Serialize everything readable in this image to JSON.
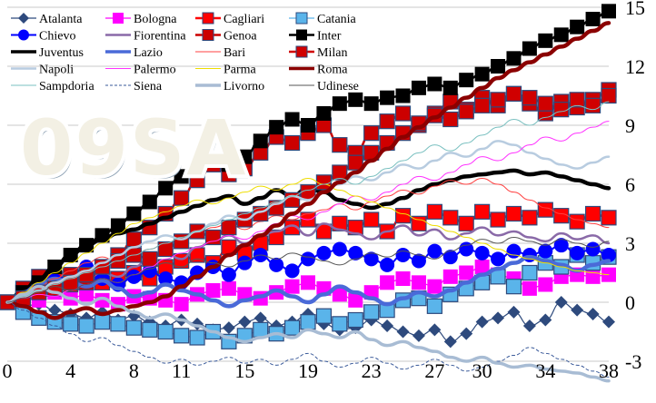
{
  "watermark": "09SA",
  "chart_data": {
    "type": "line",
    "title": "",
    "xlabel": "",
    "ylabel": "",
    "xlim": [
      0,
      38
    ],
    "ylim": [
      -3,
      15
    ],
    "x_ticks": [
      0,
      4,
      8,
      11,
      15,
      19,
      23,
      27,
      30,
      34,
      38
    ],
    "y_ticks": [
      -3,
      0,
      3,
      6,
      9,
      12,
      15
    ],
    "grid": "horizontal",
    "legend_position": "top-left",
    "series": [
      {
        "name": "Atalanta",
        "color": "#2e4a7d",
        "style": "line-diamond",
        "width": 1.2,
        "values": [
          0,
          -0.2,
          -0.1,
          -0.4,
          -0.6,
          -0.8,
          -0.5,
          -0.9,
          -0.7,
          -1.0,
          -1.2,
          -0.9,
          -1.1,
          -1.4,
          -1.3,
          -1.0,
          -0.8,
          -1.2,
          -1.0,
          -0.6,
          -1.1,
          -1.4,
          -1.3,
          -0.9,
          -1.2,
          -1.5,
          -1.7,
          -1.4,
          -2.0,
          -1.6,
          -1.0,
          -0.8,
          -0.5,
          -1.2,
          -0.9,
          0,
          -0.4,
          -0.6,
          -1.0
        ]
      },
      {
        "name": "Bologna",
        "color": "#ff00ff",
        "style": "line-square",
        "width": 1.2,
        "values": [
          0,
          0.3,
          0.1,
          0.5,
          0.2,
          0.4,
          0.1,
          -0.1,
          0.3,
          0.2,
          0.1,
          -0.1,
          0.4,
          0.6,
          0.7,
          0.4,
          0.2,
          0.5,
          0.8,
          1.0,
          0.7,
          0.4,
          0.1,
          0.5,
          1.0,
          1.2,
          1.0,
          0.8,
          1.3,
          1.5,
          1.8,
          1.4,
          1.2,
          0.7,
          0.9,
          1.3,
          1.4,
          1.3,
          1.4
        ]
      },
      {
        "name": "Cagliari",
        "color": "#ff0000",
        "style": "line-square-bordered",
        "width": 2.5,
        "values": [
          0,
          0.5,
          0.8,
          1.2,
          0.9,
          1.3,
          1.0,
          1.2,
          1.5,
          1.2,
          1.8,
          2.1,
          2.4,
          2.0,
          2.8,
          2.5,
          3.0,
          3.3,
          3.8,
          4.2,
          3.6,
          4.0,
          3.8,
          4.2,
          3.6,
          4.4,
          4.0,
          4.6,
          4.3,
          4.0,
          4.6,
          4.2,
          4.5,
          4.3,
          4.7,
          4.4,
          4.1,
          4.5,
          4.3
        ]
      },
      {
        "name": "Catania",
        "color": "#5ab4ea",
        "style": "line-square-bordered",
        "width": 1.2,
        "values": [
          0,
          -0.5,
          -0.8,
          -1.0,
          -1.1,
          -1.2,
          -1.0,
          -1.1,
          -1.3,
          -1.4,
          -1.5,
          -1.7,
          -1.8,
          -1.5,
          -2.0,
          -1.7,
          -1.4,
          -1.6,
          -1.3,
          -1.0,
          -0.7,
          -1.1,
          -0.9,
          -0.5,
          -0.4,
          0.1,
          0.2,
          -0.2,
          0.4,
          0.7,
          1.0,
          1.3,
          0.8,
          1.5,
          2.0,
          1.8,
          2.4,
          2.0,
          2.3
        ]
      },
      {
        "name": "Chievo",
        "color": "#0000ff",
        "style": "line-circle",
        "width": 2.0,
        "values": [
          0,
          0.3,
          0.7,
          1.1,
          1.4,
          1.8,
          1.2,
          0.9,
          1.3,
          1.6,
          1.2,
          1.0,
          1.5,
          1.8,
          1.4,
          2.0,
          2.4,
          1.9,
          1.6,
          2.2,
          2.5,
          2.7,
          2.5,
          2.2,
          1.9,
          2.4,
          2.1,
          2.6,
          2.3,
          2.7,
          2.5,
          2.2,
          2.6,
          2.4,
          2.6,
          2.9,
          2.5,
          2.7,
          2.4
        ]
      },
      {
        "name": "Fiorentina",
        "color": "#8a6aa8",
        "style": "line",
        "width": 2.5,
        "values": [
          0,
          0.3,
          0.6,
          0.4,
          0.8,
          1.2,
          1.5,
          1.3,
          1.8,
          2.2,
          2.5,
          2.2,
          2.8,
          3.1,
          3.4,
          3.0,
          3.4,
          3.6,
          3.9,
          3.4,
          4.0,
          3.7,
          3.5,
          3.2,
          3.6,
          3.9,
          3.4,
          3.7,
          3.2,
          3.5,
          3.8,
          3.4,
          3.6,
          3.3,
          3.1,
          3.5,
          3.2,
          3.4,
          3.0
        ]
      },
      {
        "name": "Genoa",
        "color": "#cc0000",
        "style": "line-square-bordered",
        "width": 2.5,
        "values": [
          0,
          0.7,
          1.3,
          0.8,
          1.4,
          1.0,
          1.8,
          2.4,
          3.2,
          3.8,
          4.5,
          5.3,
          6.2,
          7.0,
          6.5,
          6.8,
          7.6,
          8.4,
          8.1,
          8.6,
          9.0,
          8.0,
          7.6,
          8.6,
          9.2,
          9.6,
          9.0,
          9.6,
          10.2,
          9.8,
          10.4,
          10.0,
          10.6,
          10.1,
          9.6,
          10.2,
          9.9,
          10.3,
          10.8
        ]
      },
      {
        "name": "Inter",
        "color": "#000000",
        "style": "line-square",
        "width": 2.5,
        "values": [
          0,
          0.5,
          1.0,
          1.8,
          2.4,
          2.9,
          3.4,
          3.9,
          4.5,
          5.1,
          5.8,
          6.4,
          7.0,
          7.2,
          7.0,
          7.4,
          8.2,
          8.9,
          9.3,
          9.0,
          9.6,
          10.1,
          10.3,
          10.1,
          10.4,
          10.5,
          10.9,
          11.1,
          10.9,
          11.3,
          11.6,
          12.0,
          12.4,
          12.9,
          13.3,
          13.6,
          14.0,
          14.4,
          14.8
        ]
      },
      {
        "name": "Juventus",
        "color": "#000000",
        "style": "line",
        "width": 4.5,
        "values": [
          0,
          0.6,
          1.2,
          1.8,
          2.4,
          2.9,
          3.2,
          3.5,
          3.7,
          4.0,
          4.3,
          4.6,
          4.9,
          5.2,
          5.4,
          5.0,
          5.3,
          5.7,
          5.4,
          5.8,
          5.6,
          5.2,
          5.0,
          4.8,
          5.0,
          5.3,
          5.7,
          6.0,
          6.2,
          6.4,
          6.5,
          6.6,
          6.7,
          6.5,
          6.6,
          6.4,
          6.2,
          6.0,
          5.8
        ]
      },
      {
        "name": "Lazio",
        "color": "#4a6ad8",
        "style": "line",
        "width": 4.5,
        "values": [
          0,
          0.5,
          0.9,
          1.2,
          1.0,
          0.8,
          1.1,
          0.7,
          0.3,
          0.5,
          0.9,
          0.6,
          0.4,
          0.1,
          -0.2,
          0.1,
          0.3,
          0.6,
          0.3,
          0.0,
          0.4,
          0.8,
          0.5,
          0.2,
          -0.1,
          0.2,
          0.5,
          0.3,
          0.6,
          1.0,
          1.4,
          1.7,
          2.0,
          2.3,
          2.1,
          1.9,
          1.6,
          1.9,
          2.1
        ]
      },
      {
        "name": "Bari",
        "color": "#ff4040",
        "style": "line",
        "width": 1.0,
        "values": [
          0,
          0.4,
          0.8,
          1.2,
          1.6,
          2.0,
          2.3,
          2.0,
          2.4,
          2.7,
          3.0,
          3.2,
          3.5,
          3.8,
          4.0,
          3.7,
          4.1,
          4.4,
          4.2,
          4.5,
          4.7,
          5.0,
          4.7,
          5.1,
          5.4,
          5.7,
          5.5,
          5.9,
          6.2,
          6.0,
          6.3,
          6.0,
          5.6,
          5.2,
          4.8,
          4.5,
          4.2,
          4.0,
          3.8
        ]
      },
      {
        "name": "Milan",
        "color": "#d00000",
        "style": "line-square-bordered",
        "width": 2.5,
        "values": [
          0,
          0.2,
          0.5,
          0.7,
          1.0,
          1.4,
          1.8,
          2.1,
          2.4,
          2.2,
          2.7,
          3.1,
          3.6,
          3.3,
          3.8,
          4.2,
          4.5,
          4.8,
          5.2,
          5.6,
          6.1,
          6.6,
          7.1,
          7.6,
          8.1,
          8.6,
          9.1,
          9.5,
          9.3,
          9.7,
          10.0,
          10.3,
          10.6,
          10.4,
          10.1,
          9.8,
          10.3,
          10.0,
          10.5
        ]
      },
      {
        "name": "Napoli",
        "color": "#b8cce0",
        "style": "line",
        "width": 2.5,
        "values": [
          0,
          0.3,
          0.6,
          1.0,
          1.3,
          1.6,
          2.0,
          2.4,
          2.8,
          3.1,
          3.4,
          3.2,
          3.6,
          4.0,
          4.4,
          4.2,
          4.6,
          5.0,
          5.4,
          5.2,
          5.6,
          6.0,
          6.4,
          6.2,
          6.6,
          7.0,
          6.8,
          7.2,
          7.6,
          7.4,
          7.8,
          8.2,
          8.0,
          7.6,
          7.3,
          7.0,
          6.8,
          7.1,
          7.4
        ]
      },
      {
        "name": "Palermo",
        "color": "#ff33ff",
        "style": "line",
        "width": 1.0,
        "values": [
          0,
          0.2,
          0.4,
          0.3,
          0.6,
          0.9,
          1.2,
          1.0,
          1.4,
          1.8,
          2.2,
          2.5,
          2.8,
          3.1,
          3.4,
          3.2,
          3.6,
          4.0,
          4.4,
          4.2,
          4.6,
          5.0,
          5.4,
          5.2,
          5.6,
          6.0,
          6.4,
          6.2,
          6.6,
          7.0,
          7.4,
          7.2,
          7.6,
          8.0,
          8.4,
          8.2,
          8.6,
          8.9,
          9.2
        ]
      },
      {
        "name": "Parma",
        "color": "#eedd00",
        "style": "line",
        "width": 1.0,
        "values": [
          0,
          0.5,
          1.0,
          1.5,
          2.0,
          2.5,
          3.0,
          3.5,
          4.0,
          4.3,
          4.6,
          4.9,
          5.2,
          5.0,
          5.3,
          5.6,
          5.9,
          5.7,
          6.0,
          6.3,
          6.0,
          5.7,
          5.4,
          5.1,
          4.8,
          4.5,
          4.2,
          3.9,
          3.6,
          3.3,
          3.0,
          2.7,
          2.4,
          2.2,
          2.0,
          1.8,
          1.6,
          1.5,
          1.4
        ]
      },
      {
        "name": "Roma",
        "color": "#8b0000",
        "style": "line",
        "width": 4.5,
        "values": [
          0,
          -0.2,
          -0.5,
          -0.8,
          -0.5,
          -0.3,
          -0.6,
          -0.4,
          -0.2,
          0.0,
          0.3,
          0.8,
          1.3,
          1.8,
          2.4,
          2.9,
          3.4,
          3.9,
          4.5,
          5.0,
          5.6,
          6.1,
          6.6,
          7.2,
          7.8,
          8.4,
          8.9,
          9.4,
          9.9,
          10.4,
          10.9,
          11.4,
          11.8,
          12.2,
          12.6,
          13.0,
          13.4,
          13.8,
          14.2
        ]
      },
      {
        "name": "Sampdoria",
        "color": "#7ac0c0",
        "style": "line",
        "width": 1.0,
        "values": [
          0,
          0.3,
          0.6,
          0.9,
          1.2,
          1.5,
          1.8,
          2.1,
          2.4,
          2.7,
          3.0,
          3.3,
          3.6,
          3.9,
          4.2,
          4.5,
          4.8,
          5.1,
          5.4,
          5.7,
          6.0,
          6.3,
          6.0,
          6.4,
          6.8,
          7.2,
          7.6,
          8.0,
          7.7,
          8.1,
          8.5,
          8.9,
          9.3,
          9.0,
          9.4,
          9.7,
          10.0,
          9.8,
          10.2
        ]
      },
      {
        "name": "Siena",
        "color": "#3a5a9a",
        "style": "dashed",
        "width": 1.0,
        "values": [
          0,
          -0.4,
          -0.8,
          -1.2,
          -1.6,
          -2.0,
          -1.8,
          -2.2,
          -2.5,
          -2.8,
          -3.1,
          -2.9,
          -3.2,
          -3.0,
          -2.8,
          -3.1,
          -2.9,
          -3.2,
          -2.9,
          -2.6,
          -3.0,
          -3.3,
          -3.1,
          -2.8,
          -3.1,
          -3.4,
          -3.2,
          -2.9,
          -3.2,
          -3.5,
          -3.3,
          -3.0,
          -2.7,
          -2.3,
          -2.6,
          -2.9,
          -3.2,
          -3.5,
          -3.8
        ]
      },
      {
        "name": "Livorno",
        "color": "#a8bcd4",
        "style": "line",
        "width": 3.5,
        "values": [
          0,
          0.4,
          0.8,
          0.5,
          0.2,
          -0.1,
          0.2,
          -0.2,
          -0.5,
          -0.8,
          -0.6,
          -0.9,
          -1.2,
          -1.5,
          -1.8,
          -2.0,
          -1.8,
          -1.6,
          -1.8,
          -1.4,
          -1.6,
          -1.8,
          -1.5,
          -1.9,
          -2.2,
          -2.0,
          -2.3,
          -2.5,
          -2.8,
          -3.0,
          -2.8,
          -3.1,
          -3.3,
          -3.2,
          -3.4,
          -3.5,
          -3.6,
          -3.8,
          -4.0
        ]
      },
      {
        "name": "Udinese",
        "color": "#555555",
        "style": "line",
        "width": 1.0,
        "values": [
          0,
          0.2,
          0.5,
          0.8,
          0.6,
          0.9,
          1.2,
          1.0,
          1.4,
          1.7,
          2.0,
          1.8,
          2.2,
          2.0,
          1.8,
          2.1,
          2.4,
          2.2,
          2.5,
          2.3,
          2.1,
          1.9,
          2.2,
          2.5,
          2.3,
          2.6,
          2.4,
          2.2,
          2.6,
          2.9,
          3.2,
          3.0,
          3.3,
          3.1,
          2.9,
          3.2,
          3.0,
          2.8,
          3.1
        ]
      }
    ]
  }
}
